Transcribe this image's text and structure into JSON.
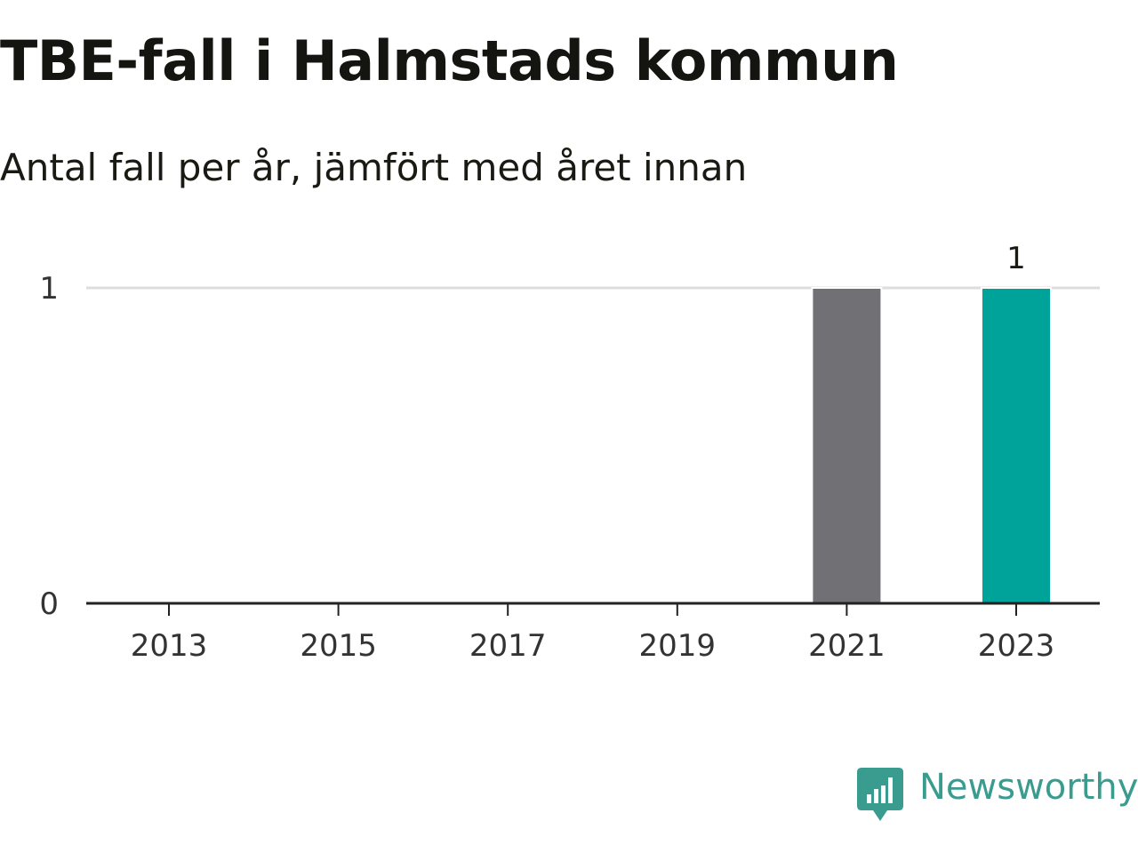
{
  "chart_data": {
    "type": "bar",
    "title": "TBE-fall i Halmstads kommun",
    "subtitle": "Antal fall per år, jämfört med året innan",
    "categories": [
      "2013",
      "2014",
      "2015",
      "2016",
      "2017",
      "2018",
      "2019",
      "2020",
      "2021",
      "2022",
      "2023"
    ],
    "x_tick_labels": [
      "2013",
      "2015",
      "2017",
      "2019",
      "2021",
      "2023"
    ],
    "values": [
      0,
      0,
      0,
      0,
      0,
      0,
      0,
      0,
      1,
      0,
      1
    ],
    "y_tick_labels": [
      "0",
      "1"
    ],
    "ylim": [
      0,
      1
    ],
    "xlabel": "",
    "ylabel": "",
    "grid": true,
    "legend": "none",
    "data_labels": [
      {
        "category": "2023",
        "label": "1"
      }
    ],
    "colors": {
      "previous_year": "#707075",
      "current_year": "#00a399",
      "gridline": "#dddddd",
      "axis": "#222222"
    }
  },
  "brand": {
    "name": "Newsworthy",
    "icon": "newsworthy-logo-icon",
    "color": "#3a9b8f"
  }
}
